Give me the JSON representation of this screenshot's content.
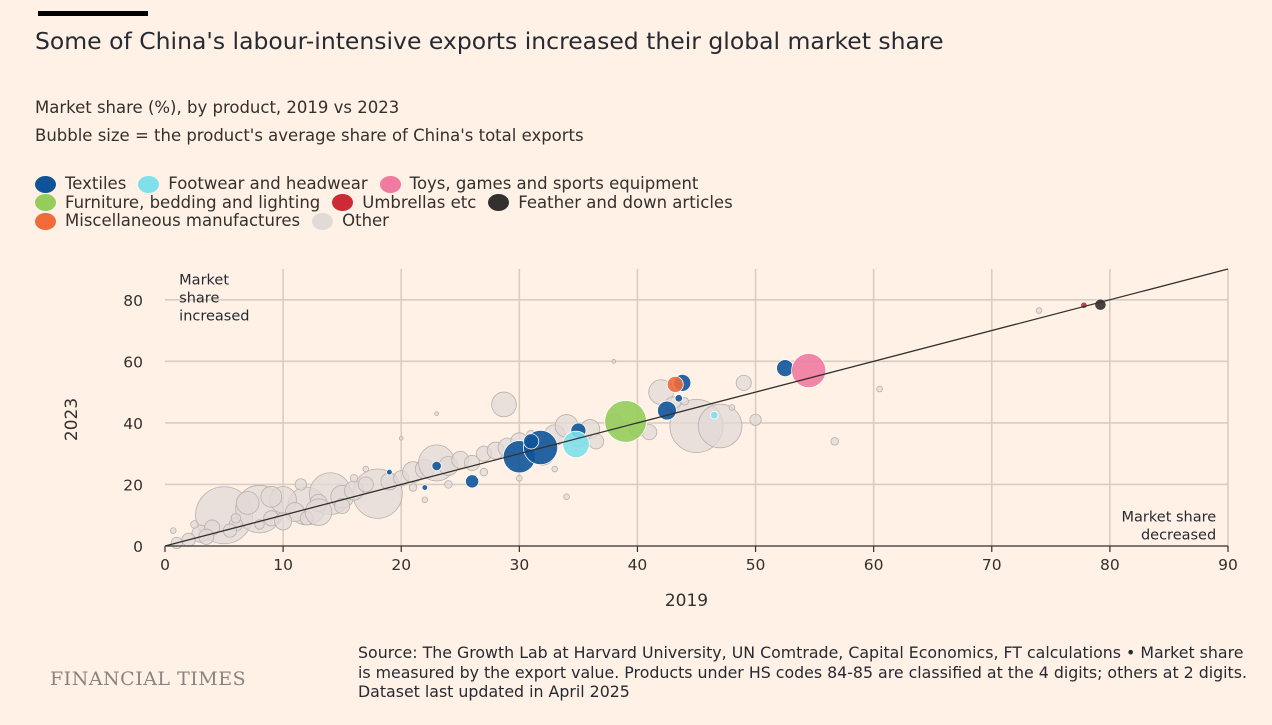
{
  "header": {
    "title": "Some of China's labour-intensive exports increased their global market share",
    "subtitle": "Market share (%), by product, 2019 vs 2023",
    "subtitle2": "Bubble size = the product's average share of China's total exports"
  },
  "legend": [
    {
      "label": "Textiles",
      "color": "#0f5499"
    },
    {
      "label": "Footwear and headwear",
      "color": "#7ee0ea"
    },
    {
      "label": "Toys, games and sports equipment",
      "color": "#f07aa0"
    },
    {
      "label": "Furniture, bedding and lighting",
      "color": "#96cc5a"
    },
    {
      "label": "Umbrellas etc",
      "color": "#cc2a36"
    },
    {
      "label": "Feather and down articles",
      "color": "#33302e"
    },
    {
      "label": "Miscellaneous manufactures",
      "color": "#f06a3a"
    },
    {
      "label": "Other",
      "color": "#e1dad7"
    }
  ],
  "chart_data": {
    "type": "scatter",
    "xlabel": "2019",
    "ylabel": "2023",
    "xlim": [
      0,
      90
    ],
    "ylim": [
      0,
      90
    ],
    "xticks": [
      0,
      10,
      20,
      30,
      40,
      50,
      60,
      70,
      80,
      90
    ],
    "yticks": [
      0,
      20,
      40,
      60,
      80
    ],
    "grid": true,
    "reference_line": {
      "from": [
        0,
        0
      ],
      "to": [
        90,
        90
      ]
    },
    "annotations": [
      {
        "lines": [
          "Market",
          "share",
          "increased"
        ],
        "x": 1.2,
        "y": 85,
        "anchor": "start"
      },
      {
        "lines": [
          "Market share",
          "decreased"
        ],
        "x": 89,
        "y": 8,
        "anchor": "end"
      }
    ],
    "series": [
      {
        "name": "Other",
        "color": "#e1dad7",
        "points": [
          {
            "x": 5,
            "y": 10,
            "s": 3.0
          },
          {
            "x": 8,
            "y": 12,
            "s": 2.5
          },
          {
            "x": 12,
            "y": 13,
            "s": 2.0
          },
          {
            "x": 14,
            "y": 17,
            "s": 2.2
          },
          {
            "x": 18,
            "y": 17,
            "s": 2.6
          },
          {
            "x": 10,
            "y": 15,
            "s": 1.4
          },
          {
            "x": 7,
            "y": 14,
            "s": 1.2
          },
          {
            "x": 3,
            "y": 4,
            "s": 0.9
          },
          {
            "x": 2,
            "y": 2,
            "s": 0.7
          },
          {
            "x": 4,
            "y": 6,
            "s": 0.8
          },
          {
            "x": 6,
            "y": 7,
            "s": 0.7
          },
          {
            "x": 9,
            "y": 9,
            "s": 0.8
          },
          {
            "x": 11,
            "y": 11,
            "s": 1.0
          },
          {
            "x": 13,
            "y": 14,
            "s": 0.9
          },
          {
            "x": 15,
            "y": 16,
            "s": 1.2
          },
          {
            "x": 16,
            "y": 18,
            "s": 1.0
          },
          {
            "x": 17,
            "y": 20,
            "s": 0.8
          },
          {
            "x": 19,
            "y": 21,
            "s": 0.9
          },
          {
            "x": 20,
            "y": 22,
            "s": 0.8
          },
          {
            "x": 21,
            "y": 24,
            "s": 1.1
          },
          {
            "x": 22,
            "y": 25,
            "s": 1.0
          },
          {
            "x": 23,
            "y": 27,
            "s": 1.9
          },
          {
            "x": 24,
            "y": 26,
            "s": 1.0
          },
          {
            "x": 25,
            "y": 28,
            "s": 0.9
          },
          {
            "x": 26,
            "y": 27,
            "s": 0.8
          },
          {
            "x": 27,
            "y": 30,
            "s": 0.8
          },
          {
            "x": 28,
            "y": 31,
            "s": 0.9
          },
          {
            "x": 29,
            "y": 32,
            "s": 1.0
          },
          {
            "x": 30,
            "y": 34,
            "s": 0.9
          },
          {
            "x": 32,
            "y": 30,
            "s": 1.2
          },
          {
            "x": 33,
            "y": 36,
            "s": 1.1
          },
          {
            "x": 34,
            "y": 39,
            "s": 1.2
          },
          {
            "x": 35,
            "y": 35,
            "s": 0.9
          },
          {
            "x": 36,
            "y": 38,
            "s": 1.0
          },
          {
            "x": 38,
            "y": 40,
            "s": 0.9
          },
          {
            "x": 40,
            "y": 38,
            "s": 0.8
          },
          {
            "x": 41,
            "y": 37,
            "s": 0.8
          },
          {
            "x": 42,
            "y": 50,
            "s": 1.3
          },
          {
            "x": 43,
            "y": 46,
            "s": 0.8
          },
          {
            "x": 45,
            "y": 39,
            "s": 2.8
          },
          {
            "x": 47,
            "y": 39,
            "s": 2.3
          },
          {
            "x": 49,
            "y": 53,
            "s": 0.8
          },
          {
            "x": 50,
            "y": 41,
            "s": 0.6
          },
          {
            "x": 28.7,
            "y": 46,
            "s": 1.3
          },
          {
            "x": 36.5,
            "y": 34,
            "s": 0.8
          },
          {
            "x": 1,
            "y": 1,
            "s": 0.6
          },
          {
            "x": 0.7,
            "y": 5,
            "s": 0.3
          },
          {
            "x": 2.5,
            "y": 7,
            "s": 0.4
          },
          {
            "x": 6,
            "y": 9,
            "s": 0.5
          },
          {
            "x": 8,
            "y": 7,
            "s": 0.5
          },
          {
            "x": 12,
            "y": 9,
            "s": 0.7
          },
          {
            "x": 13,
            "y": 11,
            "s": 1.4
          },
          {
            "x": 9,
            "y": 16,
            "s": 1.1
          },
          {
            "x": 11.5,
            "y": 20,
            "s": 0.6
          },
          {
            "x": 16,
            "y": 22,
            "s": 0.4
          },
          {
            "x": 17,
            "y": 25,
            "s": 0.3
          },
          {
            "x": 24,
            "y": 20,
            "s": 0.4
          },
          {
            "x": 22,
            "y": 15,
            "s": 0.3
          },
          {
            "x": 21,
            "y": 19,
            "s": 0.4
          },
          {
            "x": 34,
            "y": 16,
            "s": 0.3
          },
          {
            "x": 30,
            "y": 22,
            "s": 0.3
          },
          {
            "x": 20,
            "y": 35,
            "s": 0.2
          },
          {
            "x": 23,
            "y": 43,
            "s": 0.2
          },
          {
            "x": 38,
            "y": 60,
            "s": 0.2
          },
          {
            "x": 44,
            "y": 47,
            "s": 0.4
          },
          {
            "x": 56.7,
            "y": 34,
            "s": 0.4
          },
          {
            "x": 60.5,
            "y": 51,
            "s": 0.3
          },
          {
            "x": 74,
            "y": 76.5,
            "s": 0.3
          },
          {
            "x": 48,
            "y": 45,
            "s": 0.3
          },
          {
            "x": 31,
            "y": 36,
            "s": 0.5
          },
          {
            "x": 27,
            "y": 24,
            "s": 0.4
          },
          {
            "x": 33,
            "y": 25,
            "s": 0.3
          },
          {
            "x": 3.5,
            "y": 3,
            "s": 0.8
          },
          {
            "x": 5.5,
            "y": 5,
            "s": 0.7
          },
          {
            "x": 10,
            "y": 8,
            "s": 0.9
          },
          {
            "x": 15,
            "y": 13,
            "s": 0.8
          }
        ]
      },
      {
        "name": "Textiles",
        "color": "#0f5499",
        "points": [
          {
            "x": 30,
            "y": 29,
            "s": 1.7
          },
          {
            "x": 31.8,
            "y": 32,
            "s": 1.8
          },
          {
            "x": 31,
            "y": 34,
            "s": 0.8
          },
          {
            "x": 35,
            "y": 37.5,
            "s": 0.8
          },
          {
            "x": 26,
            "y": 21,
            "s": 0.7
          },
          {
            "x": 23,
            "y": 26,
            "s": 0.5
          },
          {
            "x": 42.5,
            "y": 44,
            "s": 1.0
          },
          {
            "x": 43.8,
            "y": 53,
            "s": 0.9
          },
          {
            "x": 52.5,
            "y": 57.8,
            "s": 0.9
          },
          {
            "x": 43.5,
            "y": 48,
            "s": 0.4
          },
          {
            "x": 19,
            "y": 24,
            "s": 0.3
          },
          {
            "x": 22,
            "y": 19,
            "s": 0.3
          }
        ]
      },
      {
        "name": "Footwear and headwear",
        "color": "#7ee0ea",
        "points": [
          {
            "x": 34.8,
            "y": 33,
            "s": 1.4
          },
          {
            "x": 46.5,
            "y": 42.5,
            "s": 0.4
          }
        ]
      },
      {
        "name": "Toys, games and sports equipment",
        "color": "#f07aa0",
        "points": [
          {
            "x": 54.5,
            "y": 57,
            "s": 1.8
          }
        ]
      },
      {
        "name": "Furniture, bedding and lighting",
        "color": "#96cc5a",
        "points": [
          {
            "x": 39,
            "y": 40.5,
            "s": 2.2
          }
        ]
      },
      {
        "name": "Umbrellas etc",
        "color": "#cc2a36",
        "points": [
          {
            "x": 77.8,
            "y": 78.2,
            "s": 0.35
          }
        ]
      },
      {
        "name": "Feather and down articles",
        "color": "#33302e",
        "points": [
          {
            "x": 79.2,
            "y": 78.4,
            "s": 0.6
          }
        ]
      },
      {
        "name": "Miscellaneous manufactures",
        "color": "#f06a3a",
        "points": [
          {
            "x": 43.2,
            "y": 52.5,
            "s": 0.85
          }
        ]
      }
    ]
  },
  "footer": {
    "brand": "FINANCIAL TIMES",
    "source": "Source: The Growth Lab at Harvard University, UN Comtrade, Capital Economics, FT calculations • Market share is measured by the export value. Products under HS codes 84-85 are classified at the 4 digits; others at 2 digits. Dataset last updated in April 2025"
  }
}
